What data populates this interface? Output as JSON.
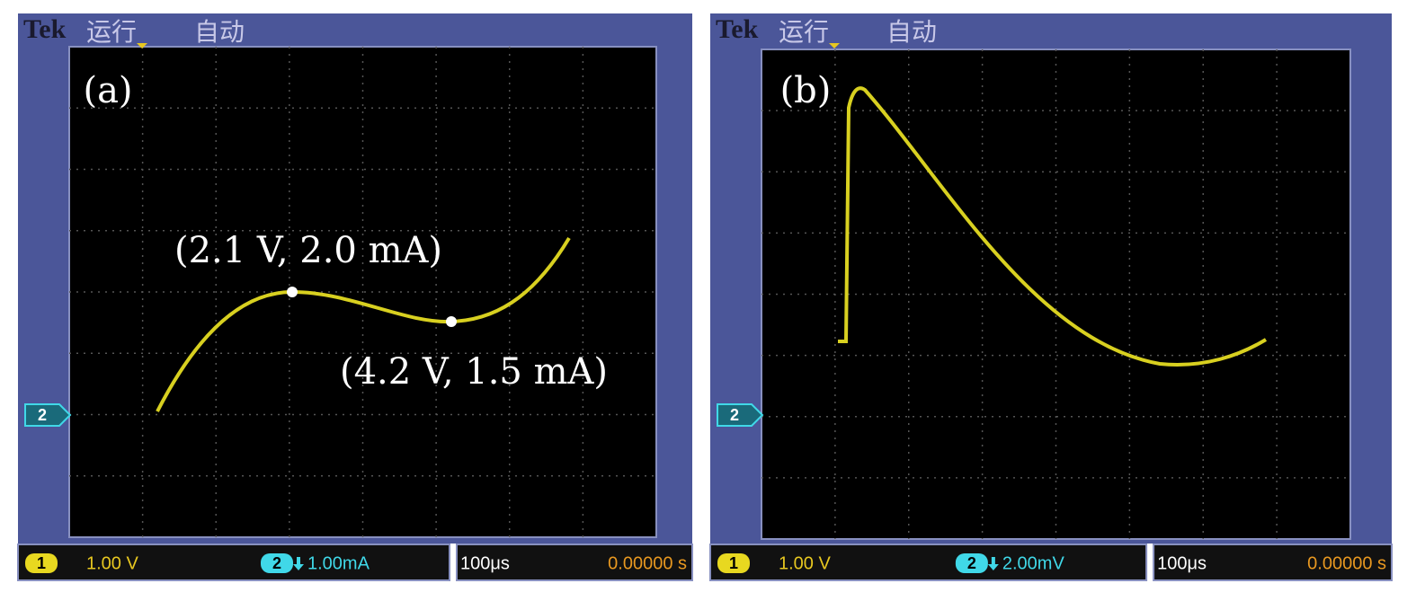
{
  "panels": [
    {
      "header": {
        "brand": "Tek",
        "status": "运行",
        "mode": "自动"
      },
      "label": "(a)",
      "annotations": [
        "(2.1 V, 2.0 mA)",
        "(4.2 V, 1.5 mA)"
      ],
      "channel_marker": "2",
      "footer": {
        "ch1_badge": "1",
        "ch1_scale": "1.00 V",
        "ch2_badge": "2",
        "ch2_scale": "1.00mA",
        "timebase": "100μs",
        "trigger_time": "0.00000 s"
      }
    },
    {
      "header": {
        "brand": "Tek",
        "status": "运行",
        "mode": "自动"
      },
      "label": "(b)",
      "channel_marker": "2",
      "footer": {
        "ch1_badge": "1",
        "ch1_scale": "1.00 V",
        "ch2_badge": "2",
        "ch2_scale": "2.00mV",
        "timebase": "100μs",
        "trigger_time": "0.00000 s"
      }
    }
  ]
}
